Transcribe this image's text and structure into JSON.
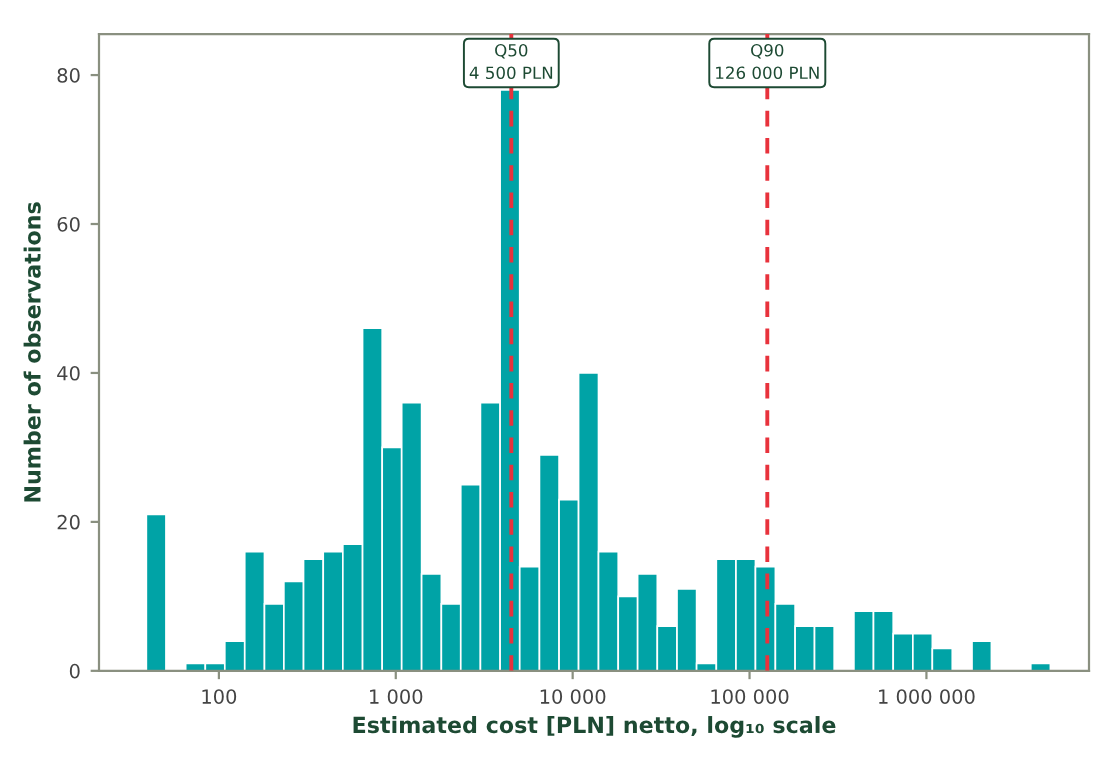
{
  "chart_data": {
    "type": "histogram",
    "xlabel": "Estimated cost [PLN] netto, log₁₀ scale",
    "ylabel": "Number of observations",
    "bins": [
      38.9,
      50.2,
      64.9,
      83.8,
      108,
      140,
      181,
      233,
      301,
      389,
      502,
      649,
      838,
      1080,
      1400,
      1810,
      2330,
      3010,
      3890,
      5020,
      6490,
      8380,
      10800,
      14000,
      18100,
      23300,
      30100,
      38900,
      50200,
      64900,
      83800,
      108000,
      140000,
      181000,
      233000,
      301000,
      389000,
      502000,
      649000,
      838000,
      1080000,
      1400000,
      1810000,
      2330000,
      3010000,
      3890000,
      5020000
    ],
    "values": [
      21,
      0,
      1,
      1,
      4,
      16,
      9,
      12,
      15,
      16,
      17,
      46,
      30,
      36,
      13,
      9,
      25,
      36,
      78,
      14,
      29,
      23,
      40,
      16,
      10,
      13,
      6,
      11,
      1,
      15,
      15,
      14,
      9,
      6,
      6,
      0,
      8,
      8,
      5,
      5,
      3,
      0,
      4,
      0,
      0,
      1
    ],
    "color": "#00a3a6",
    "log": "x",
    "xlim": [
      21,
      8300000
    ],
    "xticks": [
      {
        "value": 100,
        "label": "100"
      },
      {
        "value": 1000,
        "label": "1 000"
      },
      {
        "value": 10000,
        "label": "10 000"
      },
      {
        "value": 100000,
        "label": "100 000"
      },
      {
        "value": 1000000,
        "label": "1 000 000"
      }
    ],
    "ylim": [
      0,
      85.5
    ],
    "yticks": [
      0,
      20,
      40,
      60,
      80
    ],
    "ref_lines": [
      {
        "axis": "x",
        "value": 4500,
        "label": "Q50\n4 500 PLN",
        "color": "#e8323c",
        "line_style": "dashed"
      },
      {
        "axis": "x",
        "value": 126000,
        "label": "Q90\n126 000 PLN",
        "color": "#e8323c",
        "line_style": "dashed"
      }
    ],
    "grid": false
  }
}
